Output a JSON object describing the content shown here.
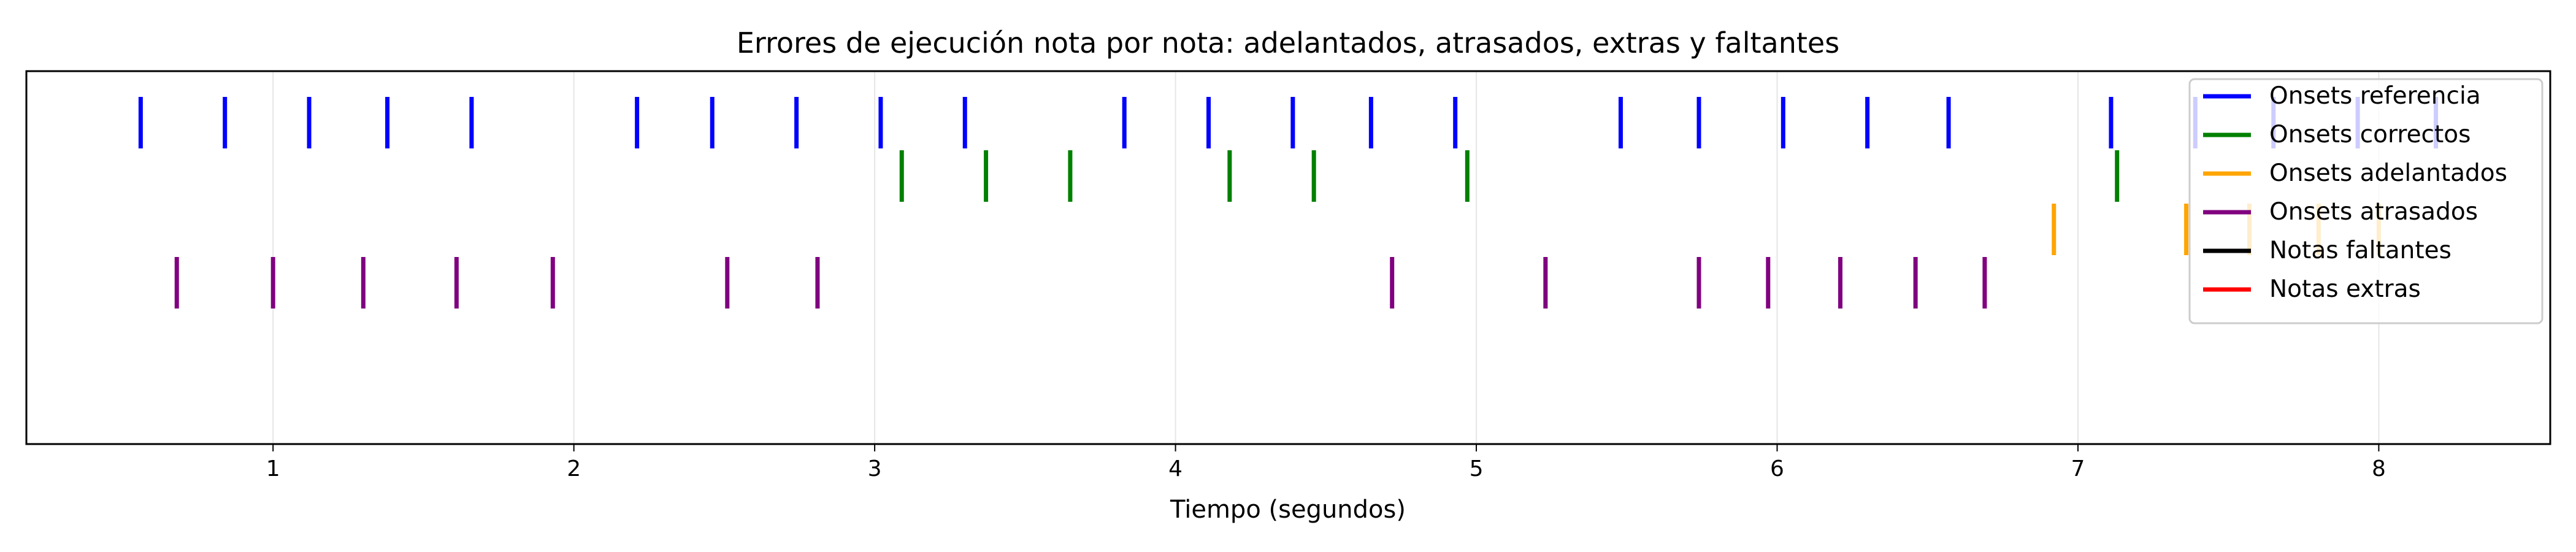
{
  "chart_data": {
    "type": "event",
    "title": "Errores de ejecución nota por nota: adelantados, atrasados, extras y faltantes",
    "xlabel": "Tiempo (segundos)",
    "ylabel": "",
    "xlim": [
      0.18,
      8.57
    ],
    "xticks": [
      1,
      2,
      3,
      4,
      5,
      6,
      7,
      8
    ],
    "grid": "vertical",
    "legend": "top-right",
    "series": [
      {
        "name": "Onsets referencia",
        "color": "#0000ff",
        "values": [
          0.56,
          0.84,
          1.12,
          1.38,
          1.66,
          2.21,
          2.46,
          2.74,
          3.02,
          3.3,
          3.83,
          4.11,
          4.39,
          4.65,
          4.93,
          5.48,
          5.74,
          6.02,
          6.3,
          6.57,
          7.11,
          7.39,
          7.65,
          7.93,
          8.19
        ]
      },
      {
        "name": "Onsets correctos",
        "color": "#008000",
        "values": [
          3.09,
          3.37,
          3.65,
          4.18,
          4.46,
          4.97,
          7.13
        ]
      },
      {
        "name": "Onsets adelantados",
        "color": "#ffa500",
        "values": [
          6.92,
          7.36,
          7.57,
          7.8,
          8.0
        ]
      },
      {
        "name": "Onsets atrasados",
        "color": "#800080",
        "values": [
          0.68,
          1.0,
          1.3,
          1.61,
          1.93,
          2.51,
          2.81,
          4.72,
          5.23,
          5.74,
          5.97,
          6.21,
          6.46,
          6.69
        ]
      },
      {
        "name": "Notas faltantes",
        "color": "#000000",
        "values": []
      },
      {
        "name": "Notas extras",
        "color": "#ff0000",
        "values": []
      }
    ]
  }
}
